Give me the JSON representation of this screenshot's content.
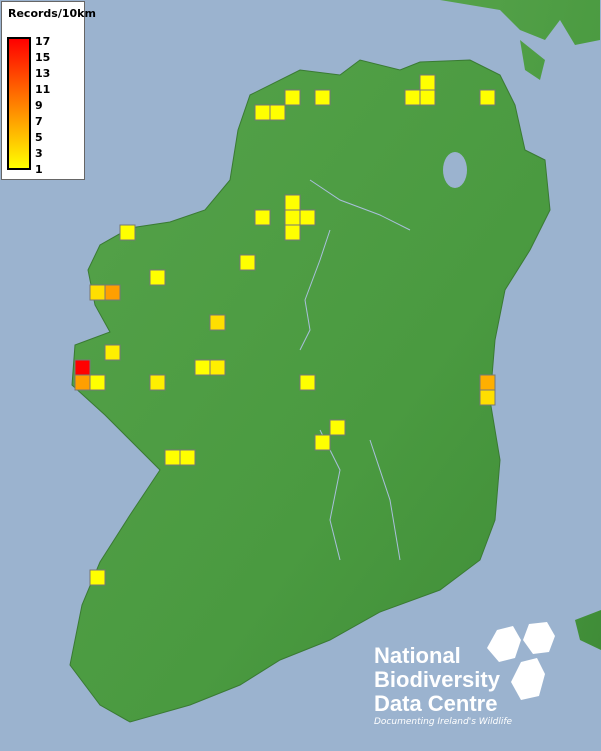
{
  "legend": {
    "title": "Records/10km",
    "ticks": [
      "17",
      "15",
      "13",
      "11",
      "9",
      "7",
      "5",
      "3",
      "1"
    ],
    "min": 1,
    "max": 17,
    "colors": {
      "low": "#ffff00",
      "mid": "#ff9900",
      "high": "#ff0000"
    }
  },
  "records": [
    1,
    1,
    1,
    1,
    1,
    1,
    1,
    1,
    1,
    1,
    1,
    1,
    1,
    1,
    1,
    1,
    3,
    7,
    3,
    2,
    17,
    7,
    1,
    1,
    2,
    2,
    1,
    6,
    3,
    1,
    1,
    1,
    1,
    1
  ],
  "colors": {
    "sea": "#9bb3cf",
    "land": "#4f9a45",
    "cell_border": "#777777"
  },
  "logo": {
    "line1": "National",
    "line2": "Biodiversity",
    "line3": "Data Centre",
    "tagline": "Documenting Ireland's Wildlife"
  }
}
